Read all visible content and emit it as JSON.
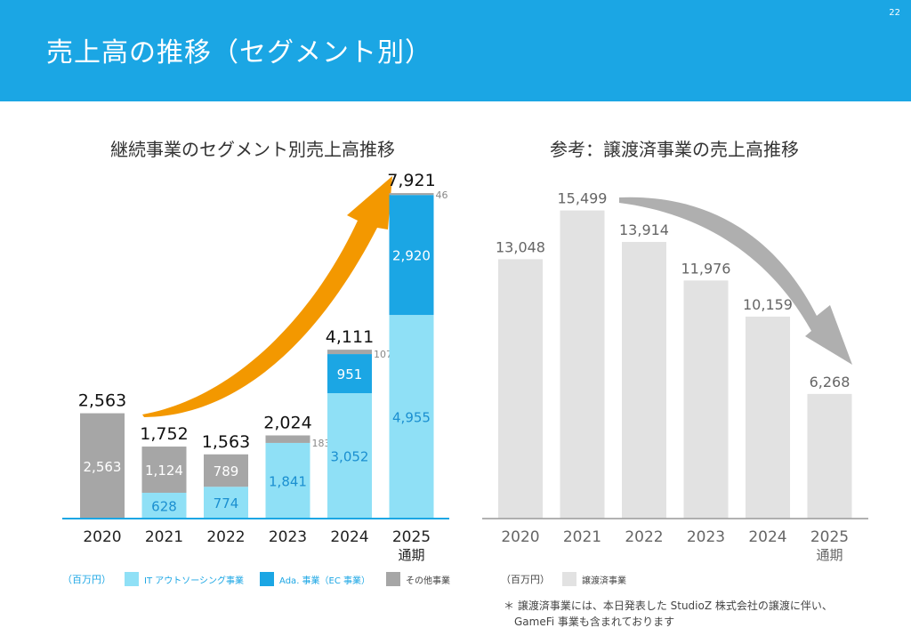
{
  "header": {
    "title": "売上高の推移（セグメント別）",
    "page_number": "22"
  },
  "left": {
    "subtitle": "継続事業のセグメント別売上高推移",
    "unit": "（百万円）",
    "legend": [
      {
        "label": "IT アウトソーシング事業",
        "color": "#8fe0f6",
        "text_color": "#1ba6e4"
      },
      {
        "label": "Ada. 事業（EC 事業）",
        "color": "#1ba6e4",
        "text_color": "#1ba6e4"
      },
      {
        "label": "その他事業",
        "color": "#a6a6a6",
        "text_color": "#444444"
      }
    ]
  },
  "right": {
    "subtitle": "参考：譲渡済事業の売上高推移",
    "unit": "（百万円）",
    "legend": [
      {
        "label": "譲渡済事業",
        "color": "#e2e2e2",
        "text_color": "#444444"
      }
    ],
    "note_line1": "＊ 譲渡済事業には、本日発表した StudioZ 株式会社の譲渡に伴い、",
    "note_line2": "GameFi 事業も含まれております"
  },
  "chart_data": [
    {
      "type": "bar",
      "stacked": true,
      "title": "継続事業のセグメント別売上高推移",
      "categories": [
        "2020",
        "2021",
        "2022",
        "2023",
        "2024",
        "2025\n通期"
      ],
      "series": [
        {
          "name": "IT アウトソーシング事業",
          "color": "#8fe0f6",
          "label_color": "#1b8fd0",
          "values": [
            0,
            628,
            774,
            1841,
            3052,
            4955
          ]
        },
        {
          "name": "Ada. 事業（EC 事業）",
          "color": "#1ba6e4",
          "label_color": "#ffffff",
          "values": [
            0,
            0,
            0,
            0,
            951,
            2920
          ]
        },
        {
          "name": "その他事業",
          "color": "#a6a6a6",
          "label_color": "#ffffff",
          "values": [
            2563,
            1124,
            789,
            183,
            107,
            46
          ]
        }
      ],
      "totals": [
        2563,
        1752,
        1563,
        2024,
        4111,
        7921
      ],
      "unit": "（百万円）",
      "trend_arrow_color": "#f39800"
    },
    {
      "type": "bar",
      "title": "参考：譲渡済事業の売上高推移",
      "categories": [
        "2020",
        "2021",
        "2022",
        "2023",
        "2024",
        "2025\n通期"
      ],
      "series": [
        {
          "name": "譲渡済事業",
          "color": "#e2e2e2",
          "values": [
            13048,
            15499,
            13914,
            11976,
            10159,
            6268
          ]
        }
      ],
      "unit": "（百万円）",
      "trend_arrow_color": "#a6a6a6"
    }
  ]
}
